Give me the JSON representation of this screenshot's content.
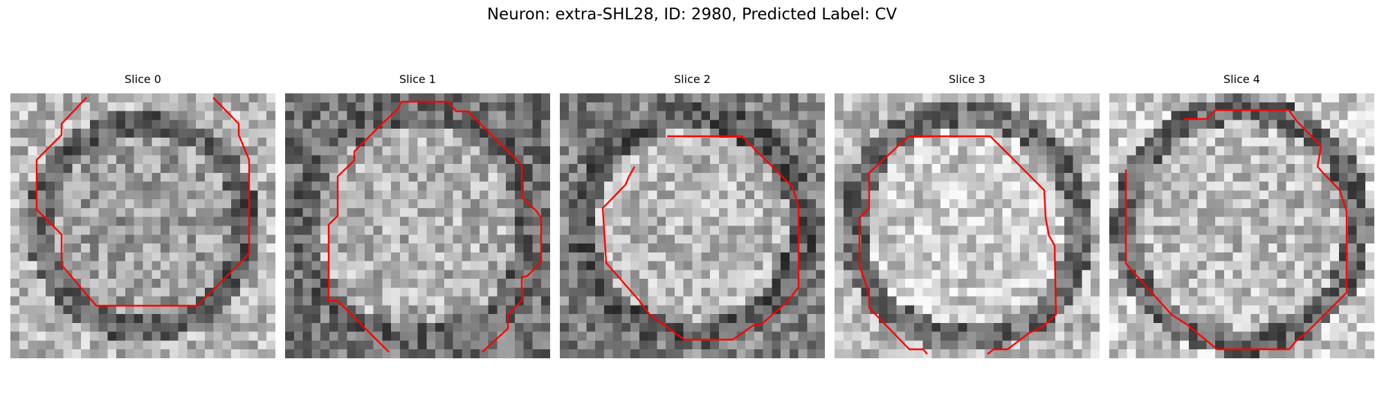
{
  "figure": {
    "title": "Neuron: extra-SHL28, ID: 2980, Predicted Label: CV"
  },
  "panels": [
    {
      "title": "Slice 0",
      "contour_color": "#ff0000"
    },
    {
      "title": "Slice 1",
      "contour_color": "#ff0000"
    },
    {
      "title": "Slice 2",
      "contour_color": "#ff0000"
    },
    {
      "title": "Slice 3",
      "contour_color": "#ff0000"
    },
    {
      "title": "Slice 4",
      "contour_color": "#ff0000"
    }
  ]
}
